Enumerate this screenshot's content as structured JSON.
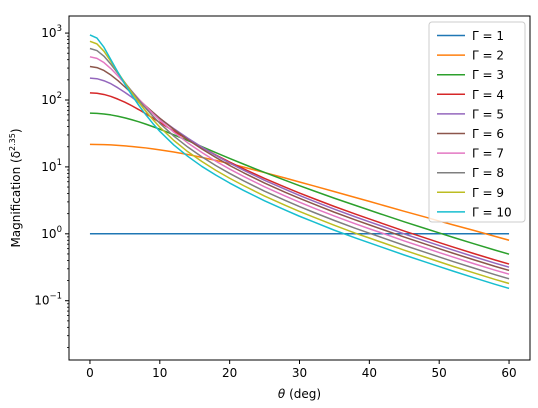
{
  "chart_data": {
    "type": "line",
    "title": "",
    "xlabel_symbol": "θ",
    "xlabel_unit": " (deg)",
    "ylabel_main": "Magnification (δ",
    "ylabel_sup": "2.35",
    "ylabel_close": ")",
    "yscale": "log",
    "xlim": [
      -3,
      63
    ],
    "ylim": [
      0.013,
      1800
    ],
    "xticks": [
      0,
      10,
      20,
      30,
      40,
      50,
      60
    ],
    "xtick_labels": [
      "0",
      "10",
      "20",
      "30",
      "40",
      "50",
      "60"
    ],
    "yticks": [
      0.1,
      1,
      10,
      100,
      1000
    ],
    "ytick_base": "10",
    "ytick_exponents": [
      "−1",
      "0",
      "1",
      "2",
      "3"
    ],
    "grid": false,
    "legend_position": "top-right",
    "x": [
      0,
      1,
      2,
      3,
      4,
      5,
      6,
      7,
      8,
      9,
      10,
      12,
      14,
      16,
      18,
      20,
      22,
      25,
      28,
      30,
      32,
      35,
      38,
      40,
      42,
      45,
      48,
      50,
      52,
      55,
      58,
      60
    ],
    "series": [
      {
        "name": "Γ = 1",
        "color": "#1f77b4",
        "values": [
          1,
          1,
          1,
          1,
          1,
          1,
          1,
          1,
          1,
          1,
          1,
          1,
          1,
          1,
          1,
          1,
          1,
          1,
          1,
          1,
          1,
          1,
          1,
          1,
          1,
          1,
          1,
          1,
          1,
          1,
          1,
          1
        ]
      },
      {
        "name": "Γ = 2",
        "color": "#ff7f0e",
        "values": [
          21.7,
          21.6,
          21.5,
          21.3,
          21.0,
          20.6,
          20.2,
          19.7,
          19.2,
          18.6,
          18.0,
          16.7,
          15.3,
          13.9,
          12.5,
          11.2,
          9.93,
          8.23,
          6.79,
          5.95,
          5.22,
          4.27,
          3.49,
          3.05,
          2.66,
          2.17,
          1.78,
          1.55,
          1.36,
          1.12,
          0.916,
          0.802
        ]
      },
      {
        "name": "Γ = 3",
        "color": "#2ca02c",
        "values": [
          63.6,
          63.1,
          61.8,
          59.8,
          57.2,
          54.1,
          50.7,
          47.2,
          43.6,
          40.0,
          36.6,
          30.2,
          24.7,
          20.1,
          16.4,
          13.4,
          11.0,
          8.25,
          6.27,
          5.24,
          4.4,
          3.4,
          2.66,
          2.26,
          1.92,
          1.51,
          1.2,
          1.03,
          0.884,
          0.708,
          0.57,
          0.496
        ]
      },
      {
        "name": "Γ = 4",
        "color": "#d62728",
        "values": [
          128,
          126,
          121,
          113,
          103,
          92.7,
          82.0,
          71.7,
          62.2,
          53.7,
          46.2,
          34.3,
          25.7,
          19.6,
          15.1,
          11.8,
          9.35,
          6.73,
          4.96,
          4.07,
          3.37,
          2.56,
          1.97,
          1.67,
          1.41,
          1.1,
          0.867,
          0.74,
          0.634,
          0.506,
          0.406,
          0.353
        ]
      },
      {
        "name": "Γ = 5",
        "color": "#9467bd",
        "values": [
          212,
          208,
          194,
          175,
          152,
          130,
          110,
          91.7,
          76.4,
          63.5,
          52.9,
          37.3,
          26.9,
          19.8,
          14.9,
          11.4,
          8.93,
          6.31,
          4.6,
          3.75,
          3.09,
          2.33,
          1.79,
          1.51,
          1.28,
          0.995,
          0.783,
          0.667,
          0.571,
          0.454,
          0.364,
          0.317
        ]
      },
      {
        "name": "Γ = 6",
        "color": "#8c564b",
        "values": [
          317,
          305,
          276,
          236,
          195,
          157,
          126,
          101,
          81.1,
          65.6,
          53.4,
          36.4,
          25.6,
          18.6,
          13.9,
          10.5,
          8.17,
          5.73,
          4.16,
          3.39,
          2.79,
          2.1,
          1.61,
          1.36,
          1.15,
          0.893,
          0.703,
          0.599,
          0.512,
          0.408,
          0.326,
          0.284
        ]
      },
      {
        "name": "Γ = 7",
        "color": "#e377c2",
        "values": [
          442,
          419,
          363,
          294,
          229,
          176,
          135,
          103,
          80.1,
          62.8,
          50.0,
          33.0,
          22.9,
          16.5,
          12.2,
          9.28,
          7.2,
          5.04,
          3.65,
          2.97,
          2.44,
          1.84,
          1.41,
          1.19,
          1.01,
          0.783,
          0.616,
          0.525,
          0.449,
          0.357,
          0.286,
          0.249
        ]
      },
      {
        "name": "Γ = 8",
        "color": "#7f7f7f",
        "values": [
          588,
          548,
          452,
          342,
          250,
          182,
          134,
          99.5,
          75.1,
          57.6,
          44.9,
          28.9,
          19.8,
          14.2,
          10.5,
          7.98,
          6.19,
          4.33,
          3.14,
          2.55,
          2.1,
          1.58,
          1.21,
          1.02,
          0.864,
          0.672,
          0.529,
          0.451,
          0.385,
          0.307,
          0.245,
          0.213
        ]
      },
      {
        "name": "Γ = 9",
        "color": "#bcbd22",
        "values": [
          754,
          690,
          536,
          376,
          259,
          180,
          128,
          92.2,
          67.9,
          51.1,
          39.3,
          24.9,
          16.9,
          12.1,
          8.91,
          6.77,
          5.25,
          3.67,
          2.66,
          2.16,
          1.78,
          1.34,
          1.02,
          0.865,
          0.732,
          0.569,
          0.448,
          0.382,
          0.326,
          0.26,
          0.208,
          0.181
        ]
      },
      {
        "name": "Γ = 10",
        "color": "#17becf",
        "values": [
          940,
          843,
          615,
          400,
          260,
          172,
          118,
          82.9,
          60.1,
          44.6,
          34.0,
          21.3,
          14.4,
          10.2,
          7.56,
          5.74,
          4.45,
          3.11,
          2.25,
          1.83,
          1.51,
          1.13,
          0.867,
          0.733,
          0.62,
          0.482,
          0.38,
          0.324,
          0.277,
          0.22,
          0.176,
          0.153
        ]
      }
    ]
  }
}
